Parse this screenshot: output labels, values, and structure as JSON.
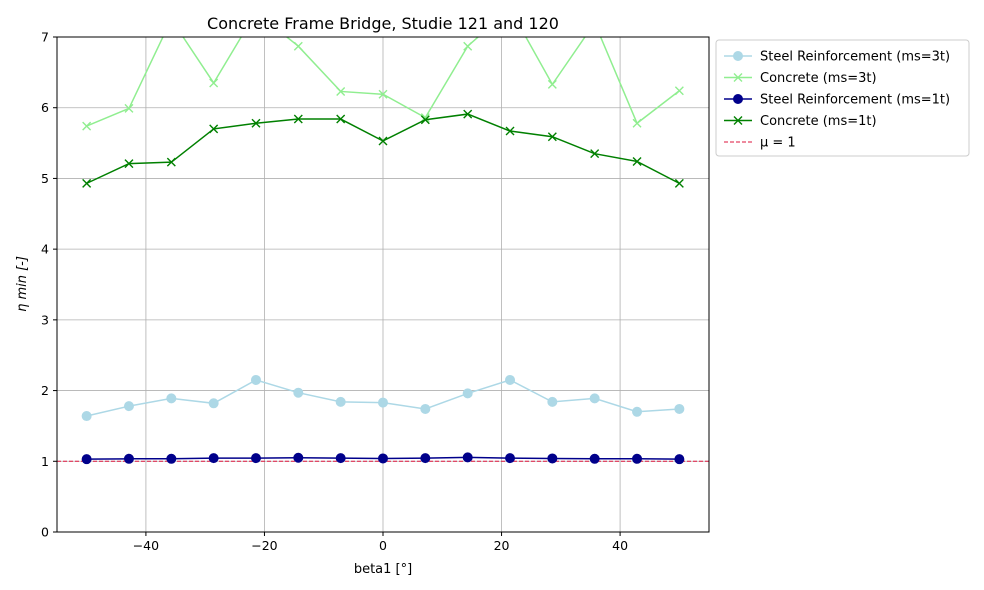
{
  "chart_data": {
    "type": "line",
    "title": "Concrete Frame Bridge, Studie 121 and 120",
    "xlabel": "beta1 [°]",
    "ylabel": "η min [-]",
    "xlim": [
      -55,
      55
    ],
    "ylim": [
      0,
      7
    ],
    "xticks": [
      -40,
      -20,
      0,
      20,
      40
    ],
    "xtick_labels": [
      "−40",
      "−20",
      "0",
      "20",
      "40"
    ],
    "yticks": [
      0,
      1,
      2,
      3,
      4,
      5,
      6,
      7
    ],
    "ytick_labels": [
      "0",
      "1",
      "2",
      "3",
      "4",
      "5",
      "6",
      "7"
    ],
    "grid": true,
    "legend_position": "outside-top-right",
    "x": [
      -50,
      -42.86,
      -35.71,
      -28.57,
      -21.43,
      -14.29,
      -7.14,
      0,
      7.14,
      14.29,
      21.43,
      28.57,
      35.71,
      42.86,
      50
    ],
    "series": [
      {
        "name": "Steel Reinforcement (ms=3t)",
        "color": "#add8e6",
        "marker": "circle",
        "values": [
          1.64,
          1.78,
          1.89,
          1.82,
          2.15,
          1.97,
          1.84,
          1.83,
          1.74,
          1.96,
          2.15,
          1.84,
          1.89,
          1.7,
          1.74
        ]
      },
      {
        "name": "Concrete (ms=3t)",
        "color": "#90ee90",
        "marker": "x",
        "values": [
          5.74,
          5.99,
          7.25,
          6.35,
          7.35,
          6.87,
          6.23,
          6.19,
          5.86,
          6.87,
          7.4,
          6.33,
          7.2,
          5.78,
          6.24
        ]
      },
      {
        "name": "Steel Reinforcement (ms=1t)",
        "color": "#00008b",
        "marker": "circle",
        "values": [
          1.03,
          1.035,
          1.035,
          1.045,
          1.045,
          1.05,
          1.045,
          1.04,
          1.045,
          1.055,
          1.045,
          1.04,
          1.035,
          1.035,
          1.03
        ]
      },
      {
        "name": "Concrete (ms=1t)",
        "color": "#008000",
        "marker": "x",
        "values": [
          4.93,
          5.21,
          5.23,
          5.7,
          5.78,
          5.84,
          5.84,
          5.53,
          5.83,
          5.91,
          5.67,
          5.59,
          5.35,
          5.24,
          4.93
        ]
      }
    ],
    "reference_line": {
      "name": "μ = 1",
      "y": 1,
      "color": "#dc143c",
      "style": "dashed"
    }
  }
}
